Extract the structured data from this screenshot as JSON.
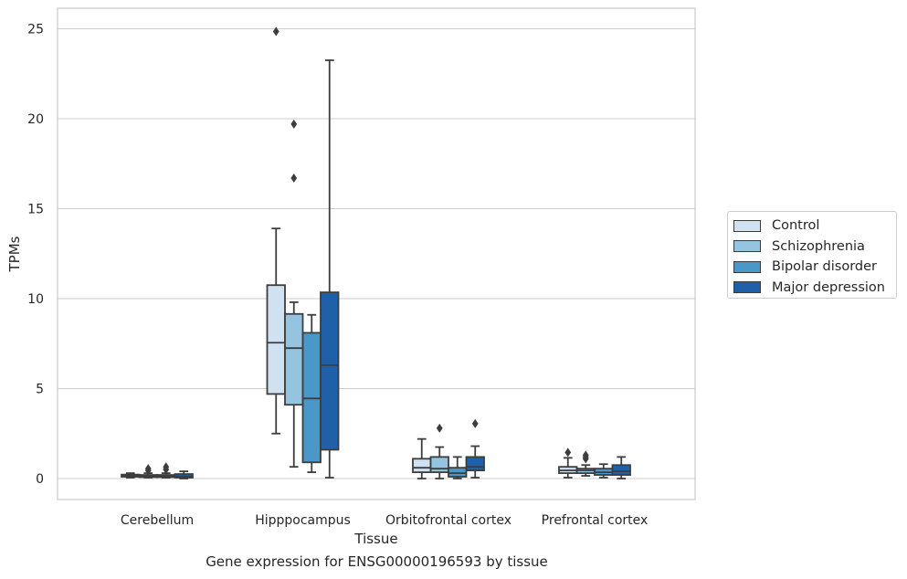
{
  "chart_data": {
    "type": "box",
    "title": "",
    "caption": "Gene expression for ENSG00000196593 by tissue",
    "xlabel": "Tissue",
    "ylabel": "TPMs",
    "ylim": [
      -1.2,
      26.2
    ],
    "yticks": [
      0,
      5,
      10,
      15,
      20,
      25
    ],
    "grid": "horizontal",
    "legend_position": "right",
    "categories": [
      "Cerebellum",
      "Hipppocampus",
      "Orbitofrontal cortex",
      "Prefrontal cortex"
    ],
    "series": [
      {
        "name": "Control",
        "color": "#d0e1f2",
        "boxes": [
          {
            "whislo": 0.05,
            "q1": 0.1,
            "med": 0.15,
            "q3": 0.22,
            "whishi": 0.3,
            "fliers": []
          },
          {
            "whislo": 2.5,
            "q1": 4.7,
            "med": 7.55,
            "q3": 10.75,
            "whishi": 13.9,
            "fliers": [
              24.85
            ]
          },
          {
            "whislo": 0.0,
            "q1": 0.35,
            "med": 0.6,
            "q3": 1.1,
            "whishi": 2.2,
            "fliers": []
          },
          {
            "whislo": 0.05,
            "q1": 0.3,
            "med": 0.45,
            "q3": 0.65,
            "whishi": 1.15,
            "fliers": [
              1.45
            ]
          }
        ]
      },
      {
        "name": "Schizophrenia",
        "color": "#94c4df",
        "boxes": [
          {
            "whislo": 0.05,
            "q1": 0.08,
            "med": 0.12,
            "q3": 0.2,
            "whishi": 0.3,
            "fliers": [
              0.45,
              0.55
            ]
          },
          {
            "whislo": 0.65,
            "q1": 4.1,
            "med": 7.25,
            "q3": 9.15,
            "whishi": 9.8,
            "fliers": [
              19.7,
              16.7
            ]
          },
          {
            "whislo": 0.0,
            "q1": 0.35,
            "med": 0.55,
            "q3": 1.2,
            "whishi": 1.75,
            "fliers": [
              2.8
            ]
          },
          {
            "whislo": 0.15,
            "q1": 0.3,
            "med": 0.45,
            "q3": 0.55,
            "whishi": 0.75,
            "fliers": [
              1.1,
              1.2,
              1.3
            ]
          }
        ]
      },
      {
        "name": "Bipolar disorder",
        "color": "#4a98c9",
        "boxes": [
          {
            "whislo": 0.05,
            "q1": 0.08,
            "med": 0.12,
            "q3": 0.2,
            "whishi": 0.3,
            "fliers": [
              0.5,
              0.65
            ]
          },
          {
            "whislo": 0.35,
            "q1": 0.9,
            "med": 4.45,
            "q3": 8.1,
            "whishi": 9.1,
            "fliers": []
          },
          {
            "whislo": 0.0,
            "q1": 0.1,
            "med": 0.3,
            "q3": 0.6,
            "whishi": 1.2,
            "fliers": []
          },
          {
            "whislo": 0.05,
            "q1": 0.2,
            "med": 0.35,
            "q3": 0.55,
            "whishi": 0.8,
            "fliers": []
          }
        ]
      },
      {
        "name": "Major depression",
        "color": "#2060a8",
        "boxes": [
          {
            "whislo": 0.0,
            "q1": 0.05,
            "med": 0.12,
            "q3": 0.25,
            "whishi": 0.4,
            "fliers": []
          },
          {
            "whislo": 0.05,
            "q1": 1.6,
            "med": 6.3,
            "q3": 10.35,
            "whishi": 23.25,
            "fliers": []
          },
          {
            "whislo": 0.05,
            "q1": 0.45,
            "med": 0.65,
            "q3": 1.2,
            "whishi": 1.8,
            "fliers": [
              3.05
            ]
          },
          {
            "whislo": 0.0,
            "q1": 0.2,
            "med": 0.4,
            "q3": 0.75,
            "whishi": 1.2,
            "fliers": []
          }
        ]
      }
    ]
  }
}
